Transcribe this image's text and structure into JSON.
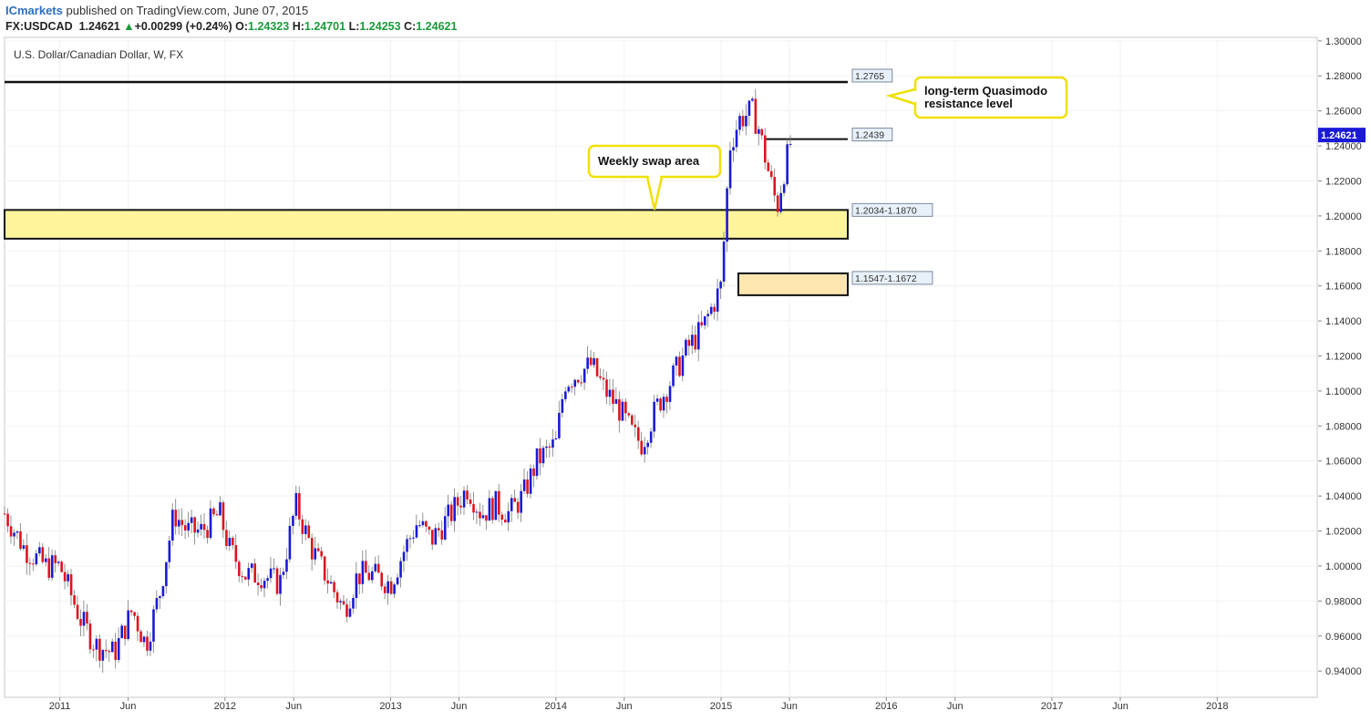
{
  "header": {
    "author": "ICmarkets",
    "published": " published on TradingView.com, June 07, 2015",
    "symbol": "FX:USDCAD",
    "last": "1.24621",
    "change_arrow": "▲",
    "change": "+0.00299 (+0.24%)",
    "o_label": "O:",
    "o": "1.24323",
    "h_label": "H:",
    "h": "1.24701",
    "l_label": "L:",
    "l": "1.24253",
    "c_label": "C:",
    "c": "1.24621"
  },
  "chart_title": "U.S. Dollar/Canadian Dollar, W, FX",
  "chart_data": {
    "type": "candlestick",
    "title": "U.S. Dollar/Canadian Dollar, W, FX",
    "ylim": [
      0.925,
      1.302
    ],
    "y_ticks": [
      "1.30000",
      "1.28000",
      "1.26000",
      "1.24000",
      "1.22000",
      "1.20000",
      "1.18000",
      "1.16000",
      "1.14000",
      "1.12000",
      "1.10000",
      "1.08000",
      "1.06000",
      "1.04000",
      "1.02000",
      "1.00000",
      "0.98000",
      "0.96000",
      "0.94000"
    ],
    "x_ticks": [
      "2011",
      "Jun",
      "2012",
      "Jun",
      "2013",
      "Jun",
      "2014",
      "Jun",
      "2015",
      "Jun",
      "2016",
      "Jun",
      "2017",
      "Jun",
      "2018"
    ],
    "x_range": [
      "2010-09-01",
      "2018-08-10"
    ],
    "current_price": "1.24621",
    "close_path": [
      [
        "2010-09-01",
        1.03
      ],
      [
        "2010-10-15",
        1.01
      ],
      [
        "2010-12-01",
        1.0
      ],
      [
        "2011-01-01",
        1.0
      ],
      [
        "2011-02-15",
        0.97
      ],
      [
        "2011-03-20",
        0.955
      ],
      [
        "2011-05-01",
        0.95
      ],
      [
        "2011-06-10",
        0.975
      ],
      [
        "2011-07-10",
        0.955
      ],
      [
        "2011-08-10",
        0.985
      ],
      [
        "2011-09-10",
        1.03
      ],
      [
        "2011-10-10",
        1.02
      ],
      [
        "2011-11-10",
        1.02
      ],
      [
        "2011-12-20",
        1.03
      ],
      [
        "2012-01-10",
        1.01
      ],
      [
        "2012-02-15",
        0.995
      ],
      [
        "2012-03-20",
        0.995
      ],
      [
        "2012-05-01",
        0.99
      ],
      [
        "2012-06-05",
        1.035
      ],
      [
        "2012-07-10",
        1.01
      ],
      [
        "2012-08-20",
        0.99
      ],
      [
        "2012-09-20",
        0.975
      ],
      [
        "2012-10-20",
        0.995
      ],
      [
        "2012-11-20",
        0.995
      ],
      [
        "2013-01-01",
        0.99
      ],
      [
        "2013-02-01",
        1.01
      ],
      [
        "2013-03-01",
        1.025
      ],
      [
        "2013-04-01",
        1.015
      ],
      [
        "2013-05-15",
        1.03
      ],
      [
        "2013-06-20",
        1.045
      ],
      [
        "2013-07-20",
        1.03
      ],
      [
        "2013-08-20",
        1.035
      ],
      [
        "2013-09-20",
        1.03
      ],
      [
        "2013-10-20",
        1.04
      ],
      [
        "2013-11-20",
        1.06
      ],
      [
        "2014-01-01",
        1.07
      ],
      [
        "2014-01-20",
        1.105
      ],
      [
        "2014-03-20",
        1.115
      ],
      [
        "2014-04-20",
        1.1
      ],
      [
        "2014-05-20",
        1.09
      ],
      [
        "2014-06-20",
        1.075
      ],
      [
        "2014-07-10",
        1.07
      ],
      [
        "2014-08-10",
        1.09
      ],
      [
        "2014-09-20",
        1.11
      ],
      [
        "2014-10-20",
        1.125
      ],
      [
        "2014-11-20",
        1.135
      ],
      [
        "2015-01-01",
        1.16
      ],
      [
        "2015-01-20",
        1.24
      ],
      [
        "2015-02-10",
        1.255
      ],
      [
        "2015-03-10",
        1.26
      ],
      [
        "2015-03-25",
        1.25
      ],
      [
        "2015-04-20",
        1.22
      ],
      [
        "2015-05-05",
        1.205
      ],
      [
        "2015-05-15",
        1.22
      ],
      [
        "2015-06-07",
        1.246
      ]
    ],
    "annotations": {
      "levels": [
        {
          "label": "1.2765",
          "value": 1.2765
        },
        {
          "label": "1.2439",
          "value": 1.2439
        }
      ],
      "zones": [
        {
          "label": "1.2034-1.1870",
          "top": 1.2034,
          "bottom": 1.187
        },
        {
          "label": "1.1547-1.1672",
          "top": 1.1672,
          "bottom": 1.1547
        }
      ],
      "callouts": [
        {
          "text": "Weekly swap area"
        },
        {
          "text": "long-term Quasimodo\nresistance level"
        }
      ]
    },
    "colors": {
      "up": "#1a1ad6",
      "down": "#e0141e",
      "zone_fill": "#fdf49c",
      "zone2_fill": "#fde6b0",
      "callout_border": "#f0e000",
      "price_tag": "#1a1ad6"
    }
  }
}
